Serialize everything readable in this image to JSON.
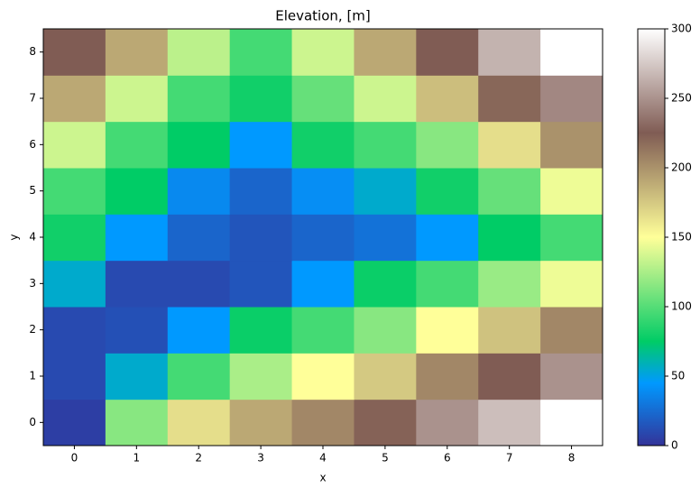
{
  "chart_data": {
    "type": "heatmap",
    "title": "Elevation, [m]",
    "xlabel": "x",
    "ylabel": "y",
    "x": [
      0,
      1,
      2,
      3,
      4,
      5,
      6,
      7,
      8
    ],
    "y": [
      0,
      1,
      2,
      3,
      4,
      5,
      6,
      7,
      8
    ],
    "z": [
      [
        5,
        115,
        165,
        190,
        205,
        222,
        250,
        270,
        300
      ],
      [
        10,
        55,
        95,
        125,
        150,
        175,
        205,
        225,
        250
      ],
      [
        10,
        13,
        45,
        78,
        95,
        115,
        150,
        178,
        205
      ],
      [
        55,
        10,
        10,
        15,
        45,
        78,
        95,
        120,
        145
      ],
      [
        80,
        45,
        22,
        15,
        22,
        28,
        45,
        75,
        95
      ],
      [
        95,
        75,
        38,
        22,
        40,
        55,
        80,
        105,
        145
      ],
      [
        135,
        95,
        75,
        45,
        80,
        95,
        115,
        165,
        200
      ],
      [
        190,
        135,
        95,
        80,
        105,
        135,
        180,
        220,
        245
      ],
      [
        225,
        190,
        130,
        95,
        135,
        190,
        225,
        265,
        300
      ]
    ],
    "colormap": "terrain",
    "clim": [
      0,
      300
    ],
    "cticks": [
      0,
      50,
      100,
      150,
      200,
      250,
      300
    ]
  }
}
